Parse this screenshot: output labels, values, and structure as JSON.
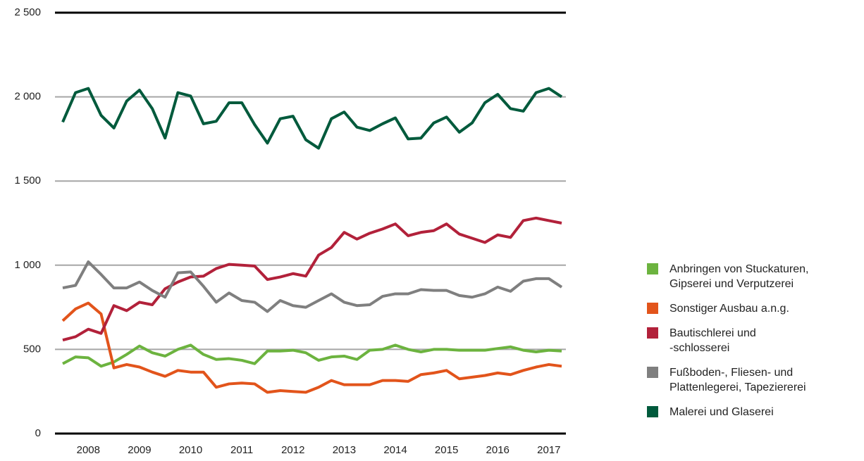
{
  "chart_data": {
    "type": "line",
    "categories": [
      null,
      null,
      "2008",
      null,
      null,
      null,
      "2009",
      null,
      null,
      null,
      "2010",
      null,
      null,
      null,
      "2011",
      null,
      null,
      null,
      "2012",
      null,
      null,
      null,
      "2013",
      null,
      null,
      null,
      "2014",
      null,
      null,
      null,
      "2015",
      null,
      null,
      null,
      "2016",
      null,
      null,
      null,
      "2017",
      null
    ],
    "ylim": [
      0,
      2500
    ],
    "yticks": [
      0,
      500,
      {
        "value": 1000,
        "label": "1 000"
      },
      {
        "value": 1500,
        "label": "1 500"
      },
      {
        "value": 2000,
        "label": "2 000"
      },
      {
        "value": 2500,
        "label": "2 500"
      }
    ],
    "grid": true,
    "legend": "right",
    "series": [
      {
        "name": "Anbringen von Stuckaturen,\nGipserei und Verputzerei",
        "color": "#6cb33f",
        "values": [
          415,
          455,
          450,
          400,
          425,
          470,
          520,
          480,
          460,
          500,
          525,
          470,
          440,
          445,
          435,
          415,
          490,
          490,
          495,
          480,
          435,
          455,
          460,
          440,
          495,
          500,
          525,
          500,
          485,
          500,
          500,
          495,
          495,
          495,
          505,
          515,
          495,
          485,
          495,
          490
        ]
      },
      {
        "name": "Sonstiger Ausbau a.n.g.",
        "color": "#e2541b",
        "values": [
          670,
          740,
          775,
          710,
          390,
          410,
          395,
          365,
          340,
          375,
          365,
          365,
          275,
          295,
          300,
          295,
          245,
          255,
          250,
          245,
          275,
          315,
          290,
          290,
          290,
          315,
          315,
          310,
          350,
          360,
          375,
          325,
          335,
          345,
          360,
          350,
          375,
          395,
          410,
          400
        ]
      },
      {
        "name": "Bautischlerei und\n-schlosserei",
        "color": "#b2213a",
        "values": [
          555,
          575,
          620,
          595,
          760,
          730,
          780,
          765,
          860,
          900,
          930,
          935,
          980,
          1005,
          1000,
          995,
          915,
          930,
          950,
          935,
          1060,
          1105,
          1195,
          1155,
          1190,
          1215,
          1245,
          1175,
          1195,
          1205,
          1245,
          1185,
          1160,
          1135,
          1180,
          1165,
          1265,
          1280,
          1265,
          1250
        ]
      },
      {
        "name": "Fußboden-, Fliesen- und\nPlattenlegerei, Tapeziererei",
        "color": "#7f7f7f",
        "values": [
          865,
          880,
          1020,
          945,
          865,
          865,
          900,
          850,
          810,
          955,
          960,
          875,
          780,
          835,
          790,
          780,
          725,
          790,
          760,
          750,
          790,
          830,
          780,
          760,
          765,
          815,
          830,
          830,
          855,
          850,
          850,
          820,
          810,
          830,
          870,
          845,
          905,
          920,
          920,
          870
        ]
      },
      {
        "name": "Malerei und Glaserei",
        "color": "#005a3c",
        "values": [
          1850,
          2025,
          2050,
          1890,
          1815,
          1975,
          2040,
          1930,
          1755,
          2025,
          2005,
          1840,
          1855,
          1965,
          1965,
          1835,
          1725,
          1870,
          1885,
          1745,
          1695,
          1870,
          1910,
          1820,
          1800,
          1840,
          1875,
          1750,
          1755,
          1845,
          1880,
          1790,
          1845,
          1965,
          2015,
          1930,
          1915,
          2025,
          2050,
          2000
        ]
      }
    ]
  }
}
